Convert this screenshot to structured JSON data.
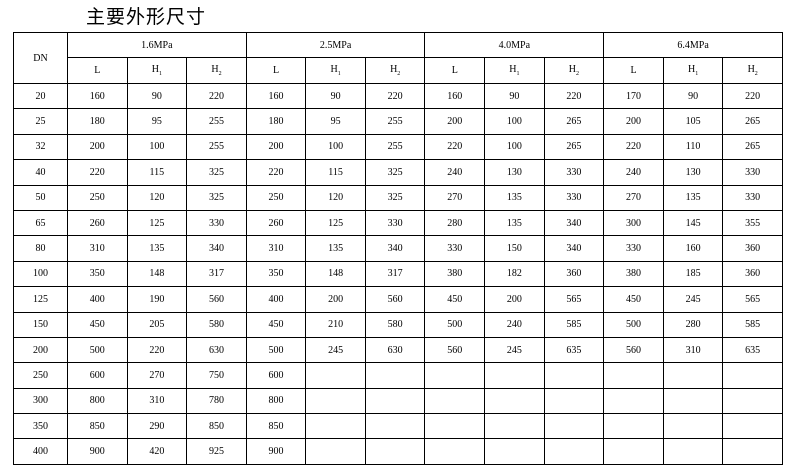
{
  "title": "主要外形尺寸",
  "table": {
    "dn_header": "DN",
    "groups": [
      "1.6MPa",
      "2.5MPa",
      "4.0MPa",
      "6.4MPa"
    ],
    "sub_headers": [
      {
        "base": "L",
        "sub": ""
      },
      {
        "base": "H",
        "sub": "1"
      },
      {
        "base": "H",
        "sub": "2"
      }
    ],
    "rows": [
      [
        "20",
        "160",
        "90",
        "220",
        "160",
        "90",
        "220",
        "160",
        "90",
        "220",
        "170",
        "90",
        "220"
      ],
      [
        "25",
        "180",
        "95",
        "255",
        "180",
        "95",
        "255",
        "200",
        "100",
        "265",
        "200",
        "105",
        "265"
      ],
      [
        "32",
        "200",
        "100",
        "255",
        "200",
        "100",
        "255",
        "220",
        "100",
        "265",
        "220",
        "110",
        "265"
      ],
      [
        "40",
        "220",
        "115",
        "325",
        "220",
        "115",
        "325",
        "240",
        "130",
        "330",
        "240",
        "130",
        "330"
      ],
      [
        "50",
        "250",
        "120",
        "325",
        "250",
        "120",
        "325",
        "270",
        "135",
        "330",
        "270",
        "135",
        "330"
      ],
      [
        "65",
        "260",
        "125",
        "330",
        "260",
        "125",
        "330",
        "280",
        "135",
        "340",
        "300",
        "145",
        "355"
      ],
      [
        "80",
        "310",
        "135",
        "340",
        "310",
        "135",
        "340",
        "330",
        "150",
        "340",
        "330",
        "160",
        "360"
      ],
      [
        "100",
        "350",
        "148",
        "317",
        "350",
        "148",
        "317",
        "380",
        "182",
        "360",
        "380",
        "185",
        "360"
      ],
      [
        "125",
        "400",
        "190",
        "560",
        "400",
        "200",
        "560",
        "450",
        "200",
        "565",
        "450",
        "245",
        "565"
      ],
      [
        "150",
        "450",
        "205",
        "580",
        "450",
        "210",
        "580",
        "500",
        "240",
        "585",
        "500",
        "280",
        "585"
      ],
      [
        "200",
        "500",
        "220",
        "630",
        "500",
        "245",
        "630",
        "560",
        "245",
        "635",
        "560",
        "310",
        "635"
      ],
      [
        "250",
        "600",
        "270",
        "750",
        "600",
        "",
        "",
        "",
        "",
        "",
        "",
        "",
        ""
      ],
      [
        "300",
        "800",
        "310",
        "780",
        "800",
        "",
        "",
        "",
        "",
        "",
        "",
        "",
        ""
      ],
      [
        "350",
        "850",
        "290",
        "850",
        "850",
        "",
        "",
        "",
        "",
        "",
        "",
        "",
        ""
      ],
      [
        "400",
        "900",
        "420",
        "925",
        "900",
        "",
        "",
        "",
        "",
        "",
        "",
        "",
        ""
      ]
    ]
  }
}
